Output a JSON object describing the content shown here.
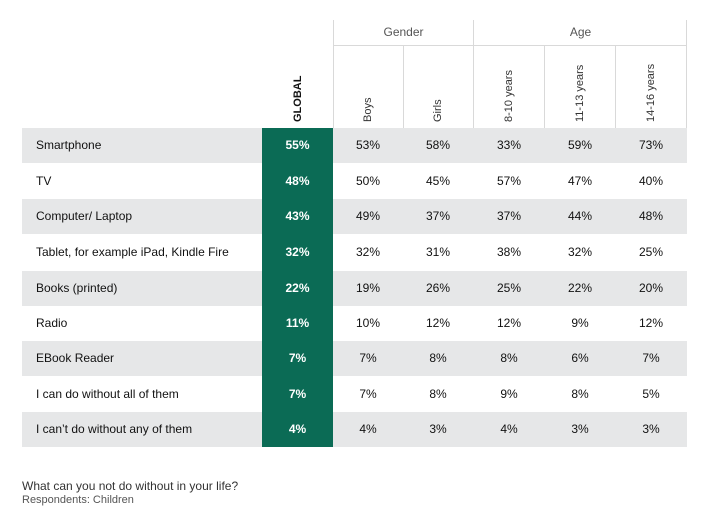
{
  "chart_data": {
    "type": "table",
    "groups": [
      {
        "label": "Gender",
        "columns": [
          "Boys",
          "Girls"
        ]
      },
      {
        "label": "Age",
        "columns": [
          "8-10 years",
          "11-13 years",
          "14-16 years"
        ]
      }
    ],
    "columns": [
      "GLOBAL",
      "Boys",
      "Girls",
      "8-10 years",
      "11-13 years",
      "14-16 years"
    ],
    "highlight_column": "GLOBAL",
    "highlight_color": "#0b6b55",
    "row_shade_color": "#e6e7e8",
    "rows": [
      {
        "label": "Smartphone",
        "values": [
          "55%",
          "53%",
          "58%",
          "33%",
          "59%",
          "73%"
        ]
      },
      {
        "label": "TV",
        "values": [
          "48%",
          "50%",
          "45%",
          "57%",
          "47%",
          "40%"
        ]
      },
      {
        "label": "Computer/ Laptop",
        "values": [
          "43%",
          "49%",
          "37%",
          "37%",
          "44%",
          "48%"
        ]
      },
      {
        "label": "Tablet, for example iPad, Kindle Fire",
        "values": [
          "32%",
          "32%",
          "31%",
          "38%",
          "32%",
          "25%"
        ]
      },
      {
        "label": "Books (printed)",
        "values": [
          "22%",
          "19%",
          "26%",
          "25%",
          "22%",
          "20%"
        ]
      },
      {
        "label": "Radio",
        "values": [
          "11%",
          "10%",
          "12%",
          "12%",
          "9%",
          "12%"
        ]
      },
      {
        "label": "EBook Reader",
        "values": [
          "7%",
          "7%",
          "8%",
          "8%",
          "6%",
          "7%"
        ]
      },
      {
        "label": "I can do without all of them",
        "values": [
          "7%",
          "7%",
          "8%",
          "9%",
          "8%",
          "5%"
        ]
      },
      {
        "label": "I can’t do without any of them",
        "values": [
          "4%",
          "4%",
          "3%",
          "4%",
          "3%",
          "3%"
        ]
      }
    ],
    "caption": "What can you not do without in your life?",
    "subcaption": "Respondents: Children"
  }
}
